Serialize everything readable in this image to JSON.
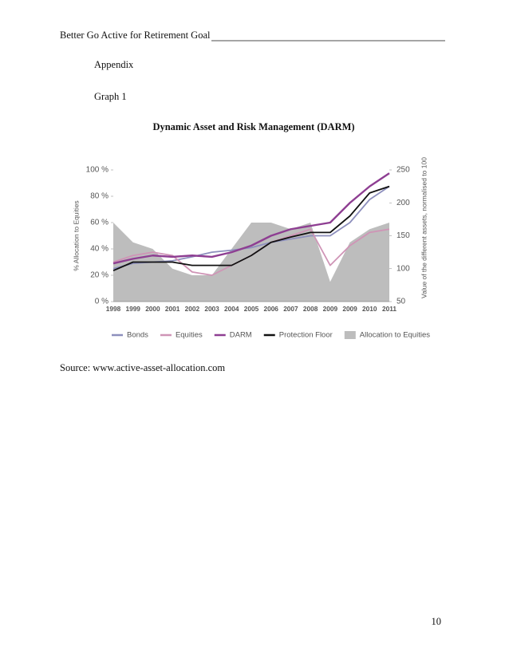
{
  "header": {
    "title": "Better Go Active for Retirement Goal"
  },
  "appendix": "Appendix",
  "graph_label": "Graph 1",
  "chart_data": {
    "type": "line",
    "title": "Dynamic Asset and Risk Management (DARM)",
    "y_label": "% Allocation to Equities",
    "y2_label": "Value of the different assets, normalised to 100",
    "categories": [
      "1998",
      "1999",
      "2000",
      "2001",
      "2002",
      "2003",
      "2004",
      "2005",
      "2006",
      "2007",
      "2008",
      "2009",
      "2009",
      "2010",
      "2011"
    ],
    "ylim": [
      0,
      100
    ],
    "yticks": [
      {
        "value": 0,
        "label": "0 %"
      },
      {
        "value": 20,
        "label": "20 %"
      },
      {
        "value": 40,
        "label": "40 %"
      },
      {
        "value": 60,
        "label": "60 %"
      },
      {
        "value": 80,
        "label": "80 %"
      },
      {
        "value": 100,
        "label": "100 %"
      }
    ],
    "y2lim": [
      50,
      250
    ],
    "y2ticks": [
      50,
      100,
      150,
      200,
      250
    ],
    "series": [
      {
        "name": "Bonds",
        "color": "#8d8fbd",
        "axis": "y2",
        "values": [
          100,
          108,
          110,
          112,
          118,
          125,
          128,
          132,
          140,
          145,
          150,
          150,
          170,
          205,
          225
        ]
      },
      {
        "name": "Equities",
        "color": "#cf94b6",
        "axis": "y2",
        "values": [
          110,
          120,
          125,
          120,
          95,
          90,
          105,
          120,
          140,
          150,
          160,
          105,
          135,
          155,
          160
        ]
      },
      {
        "name": "DARM",
        "color": "#8e3e92",
        "axis": "y2",
        "values": [
          108,
          115,
          120,
          118,
          120,
          118,
          125,
          135,
          150,
          160,
          165,
          170,
          200,
          225,
          245
        ]
      },
      {
        "name": "Protection Floor",
        "color": "#111111",
        "axis": "y2",
        "values": [
          97,
          110,
          110,
          110,
          105,
          105,
          105,
          120,
          140,
          148,
          155,
          155,
          180,
          215,
          225
        ]
      },
      {
        "name": "Allocation to Equities",
        "color": "#bdbdbd",
        "type": "area",
        "values": [
          60,
          45,
          40,
          25,
          20,
          20,
          40,
          60,
          60,
          55,
          60,
          15,
          45,
          55,
          60
        ]
      }
    ]
  },
  "source": "Source: www.active-asset-allocation.com",
  "page_number": "10"
}
